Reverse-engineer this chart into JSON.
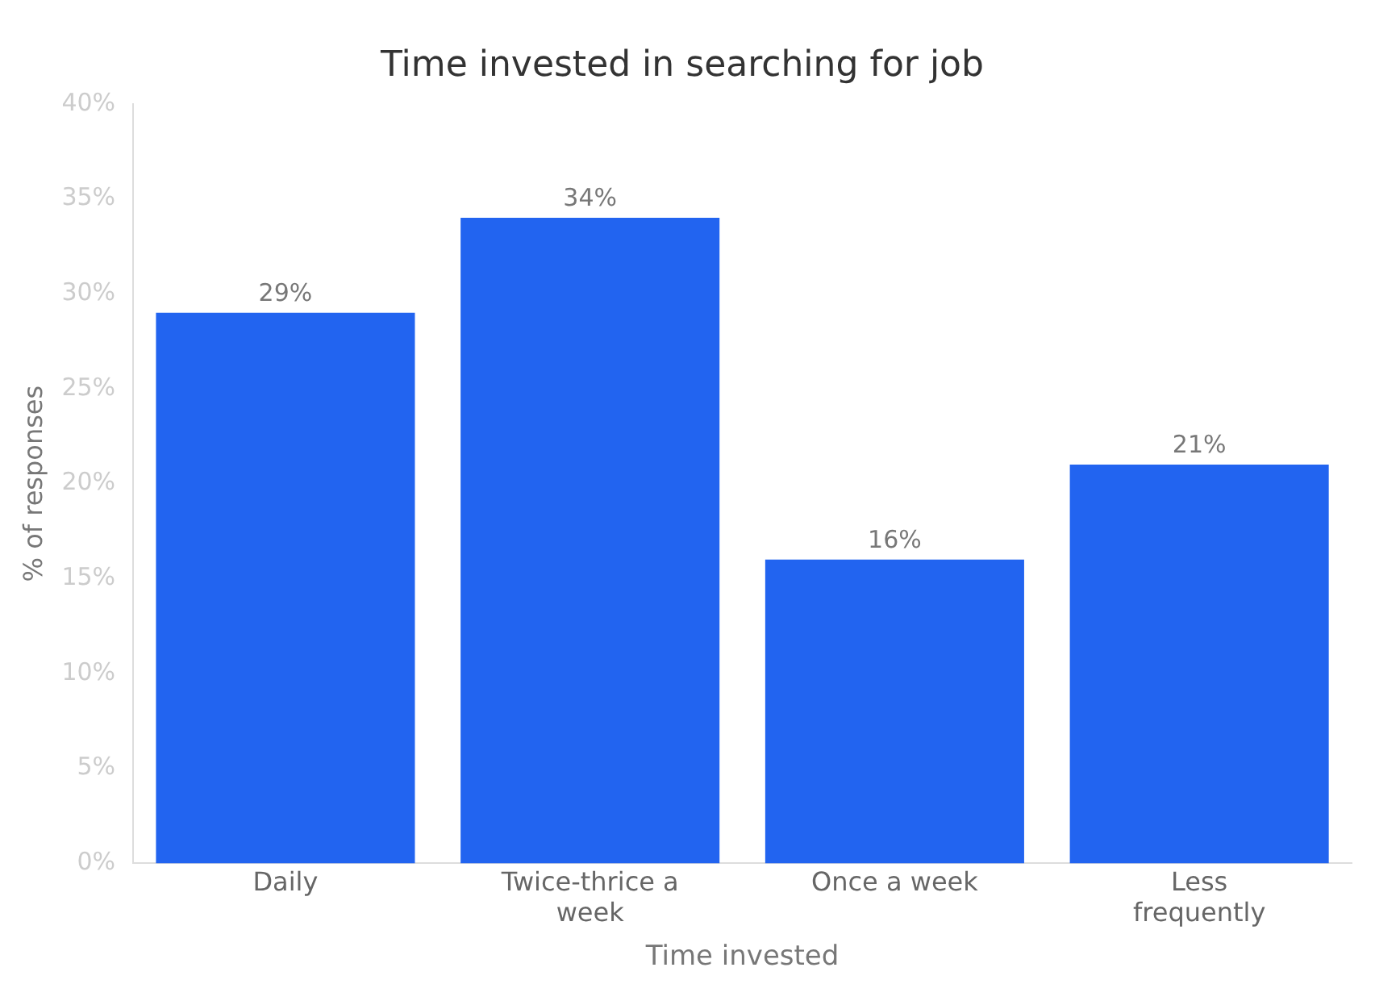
{
  "chart_data": {
    "type": "bar",
    "title": "Time invested in searching for job",
    "xlabel": "Time invested",
    "ylabel": "% of responses",
    "categories": [
      "Daily",
      "Twice-thrice a week",
      "Once a week",
      "Less frequently"
    ],
    "values": [
      29,
      34,
      16,
      21
    ],
    "color": "#2264f0",
    "value_labels": [
      "29%",
      "34%",
      "16%",
      "21%"
    ],
    "ylim": [
      0,
      40
    ],
    "yticks": [
      {
        "value": 0,
        "label": "0%"
      },
      {
        "value": 5,
        "label": "5%"
      },
      {
        "value": 10,
        "label": "10%"
      },
      {
        "value": 15,
        "label": "15%"
      },
      {
        "value": 20,
        "label": "20%"
      },
      {
        "value": 25,
        "label": "25%"
      },
      {
        "value": 30,
        "label": "30%"
      },
      {
        "value": 35,
        "label": "35%"
      },
      {
        "value": 40,
        "label": "40%"
      }
    ],
    "grid": false,
    "legend": false
  }
}
